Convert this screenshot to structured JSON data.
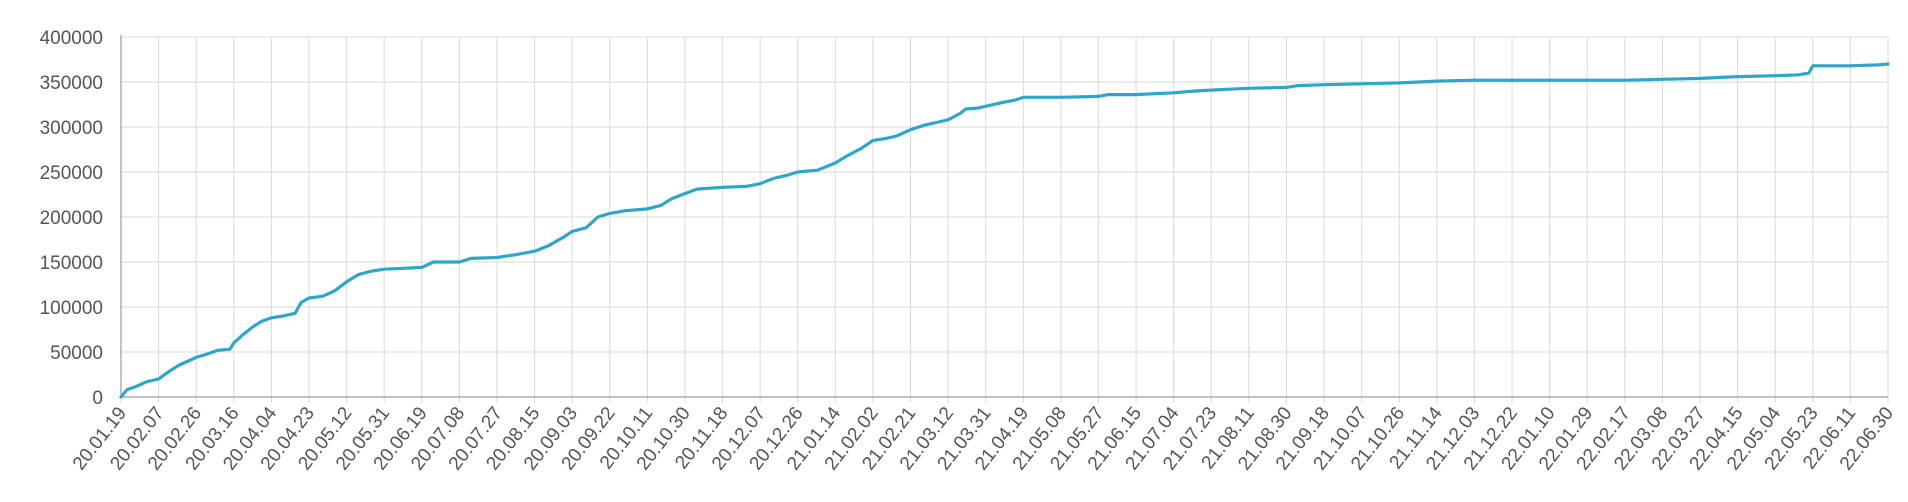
{
  "chart_data": {
    "type": "line",
    "title": "",
    "xlabel": "",
    "ylabel": "",
    "ylim": [
      0,
      400000
    ],
    "y_ticks": [
      0,
      50000,
      100000,
      150000,
      200000,
      250000,
      300000,
      350000,
      400000
    ],
    "x_range": [
      "2020-01-19",
      "2022-06-30"
    ],
    "x_tick_labels": [
      "20.01.19",
      "20.02.07",
      "20.02.26",
      "20.03.16",
      "20.04.04",
      "20.04.23",
      "20.05.12",
      "20.05.31",
      "20.06.19",
      "20.07.08",
      "20.07.27",
      "20.08.15",
      "20.09.03",
      "20.09.22",
      "20.10.11",
      "20.10.30",
      "20.11.18",
      "20.12.07",
      "20.12.26",
      "21.01.14",
      "21.02.02",
      "21.02.21",
      "21.03.12",
      "21.03.31",
      "21.04.19",
      "21.05.08",
      "21.05.27",
      "21.06.15",
      "21.07.04",
      "21.07.23",
      "21.08.11",
      "21.08.30",
      "21.09.18",
      "21.10.07",
      "21.10.26",
      "21.11.14",
      "21.12.03",
      "21.12.22",
      "22.01.10",
      "22.01.29",
      "22.02.17",
      "22.03.08",
      "22.03.27",
      "22.04.15",
      "22.05.04",
      "22.05.23",
      "22.06.11",
      "22.06.30"
    ],
    "grid": true,
    "legend": "none",
    "color": "#2fa6c9",
    "series": [
      {
        "points": [
          [
            "2020-01-19",
            0
          ],
          [
            "2020-01-22",
            8000
          ],
          [
            "2020-01-27",
            12000
          ],
          [
            "2020-02-01",
            17000
          ],
          [
            "2020-02-07",
            20000
          ],
          [
            "2020-02-12",
            28000
          ],
          [
            "2020-02-17",
            35000
          ],
          [
            "2020-02-22",
            40000
          ],
          [
            "2020-02-26",
            44000
          ],
          [
            "2020-03-03",
            48000
          ],
          [
            "2020-03-08",
            52000
          ],
          [
            "2020-03-14",
            53000
          ],
          [
            "2020-03-16",
            60000
          ],
          [
            "2020-03-20",
            68000
          ],
          [
            "2020-03-25",
            77000
          ],
          [
            "2020-03-30",
            84000
          ],
          [
            "2020-04-04",
            88000
          ],
          [
            "2020-04-10",
            90000
          ],
          [
            "2020-04-16",
            93000
          ],
          [
            "2020-04-19",
            105000
          ],
          [
            "2020-04-23",
            110000
          ],
          [
            "2020-04-30",
            112000
          ],
          [
            "2020-05-06",
            118000
          ],
          [
            "2020-05-12",
            128000
          ],
          [
            "2020-05-18",
            136000
          ],
          [
            "2020-05-25",
            140000
          ],
          [
            "2020-05-31",
            142000
          ],
          [
            "2020-06-10",
            143000
          ],
          [
            "2020-06-19",
            144000
          ],
          [
            "2020-06-25",
            150000
          ],
          [
            "2020-07-08",
            150000
          ],
          [
            "2020-07-14",
            154000
          ],
          [
            "2020-07-27",
            155000
          ],
          [
            "2020-08-05",
            158000
          ],
          [
            "2020-08-15",
            162000
          ],
          [
            "2020-08-22",
            168000
          ],
          [
            "2020-08-30",
            178000
          ],
          [
            "2020-09-03",
            184000
          ],
          [
            "2020-09-10",
            188000
          ],
          [
            "2020-09-16",
            200000
          ],
          [
            "2020-09-22",
            204000
          ],
          [
            "2020-09-30",
            207000
          ],
          [
            "2020-10-11",
            209000
          ],
          [
            "2020-10-18",
            213000
          ],
          [
            "2020-10-23",
            220000
          ],
          [
            "2020-10-30",
            226000
          ],
          [
            "2020-11-05",
            231000
          ],
          [
            "2020-11-18",
            233000
          ],
          [
            "2020-11-30",
            234000
          ],
          [
            "2020-12-07",
            237000
          ],
          [
            "2020-12-14",
            243000
          ],
          [
            "2020-12-20",
            246000
          ],
          [
            "2020-12-26",
            250000
          ],
          [
            "2021-01-05",
            252000
          ],
          [
            "2021-01-14",
            260000
          ],
          [
            "2021-01-20",
            268000
          ],
          [
            "2021-01-27",
            276000
          ],
          [
            "2021-02-02",
            285000
          ],
          [
            "2021-02-08",
            287000
          ],
          [
            "2021-02-14",
            290000
          ],
          [
            "2021-02-21",
            297000
          ],
          [
            "2021-02-28",
            302000
          ],
          [
            "2021-03-06",
            305000
          ],
          [
            "2021-03-12",
            308000
          ],
          [
            "2021-03-18",
            315000
          ],
          [
            "2021-03-21",
            320000
          ],
          [
            "2021-03-27",
            321000
          ],
          [
            "2021-03-31",
            323000
          ],
          [
            "2021-04-08",
            327000
          ],
          [
            "2021-04-15",
            330000
          ],
          [
            "2021-04-19",
            333000
          ],
          [
            "2021-05-08",
            333000
          ],
          [
            "2021-05-27",
            334000
          ],
          [
            "2021-06-01",
            336000
          ],
          [
            "2021-06-15",
            336000
          ],
          [
            "2021-07-04",
            338000
          ],
          [
            "2021-07-15",
            340000
          ],
          [
            "2021-07-23",
            341000
          ],
          [
            "2021-08-01",
            342000
          ],
          [
            "2021-08-11",
            343000
          ],
          [
            "2021-08-30",
            344000
          ],
          [
            "2021-09-05",
            346000
          ],
          [
            "2021-09-18",
            347000
          ],
          [
            "2021-10-07",
            348000
          ],
          [
            "2021-10-26",
            349000
          ],
          [
            "2021-11-05",
            350000
          ],
          [
            "2021-11-14",
            351000
          ],
          [
            "2021-12-03",
            352000
          ],
          [
            "2022-01-10",
            352000
          ],
          [
            "2022-02-17",
            352000
          ],
          [
            "2022-03-08",
            353000
          ],
          [
            "2022-03-27",
            354000
          ],
          [
            "2022-04-15",
            356000
          ],
          [
            "2022-05-04",
            357000
          ],
          [
            "2022-05-16",
            358000
          ],
          [
            "2022-05-21",
            360000
          ],
          [
            "2022-05-23",
            368000
          ],
          [
            "2022-06-11",
            368000
          ],
          [
            "2022-06-25",
            369000
          ],
          [
            "2022-06-30",
            370000
          ]
        ]
      }
    ]
  }
}
